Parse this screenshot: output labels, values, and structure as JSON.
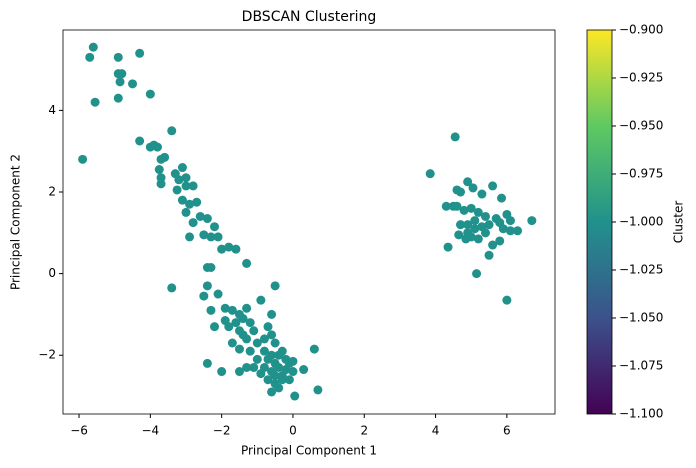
{
  "chart_data": {
    "type": "scatter",
    "title": "DBSCAN Clustering",
    "x_label": "Principal Component 1",
    "y_label": "Principal Component 2",
    "color": "#21918c",
    "x": [
      -5.9,
      -5.6,
      -5.7,
      -5.55,
      -4.9,
      -4.9,
      -4.8,
      -4.85,
      -4.9,
      -4.5,
      -4.3,
      -4.0,
      -4.3,
      -4.0,
      -3.9,
      -3.8,
      -3.7,
      -3.6,
      -3.4,
      -3.75,
      -3.7,
      -3.7,
      -3.3,
      -3.2,
      -3.25,
      -3.1,
      -3.0,
      -3.0,
      -2.8,
      -3.1,
      -2.9,
      -3.0,
      -2.7,
      -2.6,
      -2.8,
      -2.4,
      -2.2,
      -2.9,
      -2.5,
      -2.3,
      -2.1,
      -2.0,
      -1.8,
      -1.6,
      -3.4,
      -2.4,
      -2.3,
      -1.3,
      -2.4,
      -2.5,
      -2.1,
      -2.3,
      -1.9,
      -1.7,
      -1.5,
      -1.3,
      -0.9,
      -0.5,
      -2.2,
      -1.9,
      -1.8,
      -1.6,
      -1.5,
      -1.4,
      -1.2,
      -1.1,
      -0.7,
      -0.6,
      -1.7,
      -1.5,
      -1.3,
      -1.2,
      -1.0,
      -0.8,
      -0.6,
      -0.5,
      -1.0,
      -0.8,
      -0.7,
      -0.6,
      -0.5,
      -0.4,
      -0.3,
      -0.2,
      -1.1,
      -0.9,
      -0.8,
      -0.7,
      -0.6,
      -0.5,
      -0.4,
      -0.3,
      -0.2,
      -0.1,
      0.0,
      -0.6,
      -0.5,
      -0.4,
      -0.3,
      -0.1,
      0.0,
      -1.3,
      -2.4,
      -2.0,
      0.05,
      0.6,
      0.3,
      0.7,
      -1.5,
      -1.4,
      3.85,
      4.55,
      4.6,
      4.7,
      4.5,
      4.3,
      4.6,
      4.35,
      4.9,
      5.05,
      5.3,
      5.6,
      5.85,
      4.8,
      5.0,
      5.2,
      5.4,
      5.7,
      5.8,
      6.0,
      6.1,
      6.7,
      4.7,
      4.9,
      5.1,
      5.3,
      5.5,
      5.9,
      6.1,
      6.3,
      4.65,
      4.85,
      5.0,
      5.2,
      5.4,
      5.6,
      5.8,
      5.5,
      5.15,
      6.0,
      5.1,
      4.9
    ],
    "values": [
      2.8,
      5.55,
      5.3,
      4.2,
      5.3,
      4.9,
      4.9,
      4.7,
      4.3,
      4.65,
      5.4,
      4.4,
      3.25,
      3.1,
      3.15,
      3.1,
      2.8,
      2.85,
      3.5,
      2.55,
      2.35,
      2.2,
      2.45,
      2.3,
      2.05,
      2.6,
      2.35,
      2.15,
      2.15,
      1.8,
      1.7,
      1.5,
      1.75,
      1.4,
      1.25,
      1.35,
      1.15,
      0.9,
      0.95,
      0.9,
      0.9,
      0.6,
      0.65,
      0.6,
      -0.35,
      0.15,
      0.15,
      0.25,
      -0.3,
      -0.55,
      -0.5,
      -0.9,
      -0.85,
      -0.9,
      -1.0,
      -0.85,
      -0.65,
      -0.3,
      -1.3,
      -1.15,
      -1.3,
      -1.2,
      -1.4,
      -1.1,
      -1.2,
      -1.4,
      -1.3,
      -1.0,
      -1.7,
      -1.85,
      -1.6,
      -1.9,
      -1.7,
      -1.6,
      -1.5,
      -1.7,
      -2.1,
      -1.9,
      -2.1,
      -2.0,
      -2.2,
      -2.0,
      -1.9,
      -2.1,
      -2.3,
      -2.45,
      -2.3,
      -2.6,
      -2.4,
      -2.5,
      -2.3,
      -2.5,
      -2.35,
      -2.2,
      -2.4,
      -2.9,
      -2.7,
      -2.8,
      -2.6,
      -2.6,
      -2.15,
      -2.3,
      -2.2,
      -2.4,
      -3.0,
      -1.85,
      -2.35,
      -2.85,
      -2.4,
      -1.5,
      2.45,
      3.35,
      2.05,
      2.0,
      1.65,
      1.65,
      1.65,
      0.65,
      2.25,
      2.1,
      1.95,
      2.15,
      1.85,
      1.55,
      1.6,
      1.5,
      1.4,
      1.35,
      1.25,
      1.45,
      1.3,
      1.3,
      1.2,
      1.2,
      1.1,
      1.15,
      1.2,
      1.1,
      1.05,
      1.05,
      0.95,
      0.85,
      0.9,
      0.85,
      1.0,
      0.7,
      0.8,
      0.45,
      0.0,
      -0.65,
      1.3,
      1.0
    ],
    "xlim": [
      -6.45,
      7.35
    ],
    "ylim": [
      -3.44,
      5.97
    ],
    "xticks": [
      {
        "value": -6,
        "label": "−6"
      },
      {
        "value": -4,
        "label": "−4"
      },
      {
        "value": -2,
        "label": "−2"
      },
      0,
      2,
      4,
      6
    ],
    "yticks": [
      {
        "value": -2,
        "label": "−2"
      },
      0,
      2,
      4
    ],
    "colorbar": {
      "label": "Cluster",
      "colormap": "viridis",
      "lim": [
        -1.1,
        -0.9
      ],
      "ticks": [
        {
          "value": -1.1,
          "label": "−1.100"
        },
        {
          "value": -1.075,
          "label": "−1.075"
        },
        {
          "value": -1.05,
          "label": "−1.050"
        },
        {
          "value": -1.025,
          "label": "−1.025"
        },
        {
          "value": -1.0,
          "label": "−1.000"
        },
        {
          "value": -0.975,
          "label": "−0.975"
        },
        {
          "value": -0.95,
          "label": "−0.950"
        },
        {
          "value": -0.925,
          "label": "−0.925"
        },
        {
          "value": -0.9,
          "label": "−0.900"
        }
      ]
    }
  }
}
